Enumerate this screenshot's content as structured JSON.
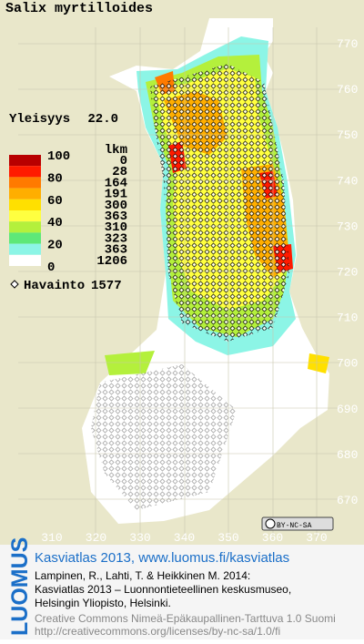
{
  "title": "Salix myrtilloides",
  "frequency": {
    "label": "Yleisyys",
    "value": "22.0"
  },
  "legend": {
    "scale": [
      100,
      80,
      60,
      40,
      20,
      0
    ],
    "count_header": "lkm",
    "counts": [
      0,
      28,
      164,
      191,
      300,
      363,
      310,
      323,
      363,
      1206
    ],
    "colors": [
      "#b80000",
      "#ff1a00",
      "#ff7a00",
      "#ffae00",
      "#ffe000",
      "#ffff40",
      "#b4f03c",
      "#5ee878",
      "#8cf5e6",
      "#ffffff"
    ]
  },
  "observation": {
    "label": "Havainto",
    "count": 1577
  },
  "x_axis": [
    310,
    320,
    330,
    340,
    350,
    360,
    370
  ],
  "y_axis": [
    770,
    760,
    750,
    740,
    730,
    720,
    710,
    700,
    690,
    680,
    670
  ],
  "license_badge": "BY-NC-SA",
  "footer": {
    "brand": "LUOMUS",
    "atlas": "Kasviatlas 2013, www.luomus.fi/kasviatlas",
    "citation": [
      "Lampinen, R., Lahti, T. & Heikkinen M. 2014:",
      "Kasviatlas 2013 – Luonnontieteellinen keskusmuseo,",
      "Helsingin Yliopisto, Helsinki."
    ],
    "license": [
      "Creative Commons Nimeä-Epäkaupallinen-Tarttuva 1.0 Suomi",
      "http://creativecommons.org/licenses/by-nc-sa/1.0/fi"
    ]
  }
}
